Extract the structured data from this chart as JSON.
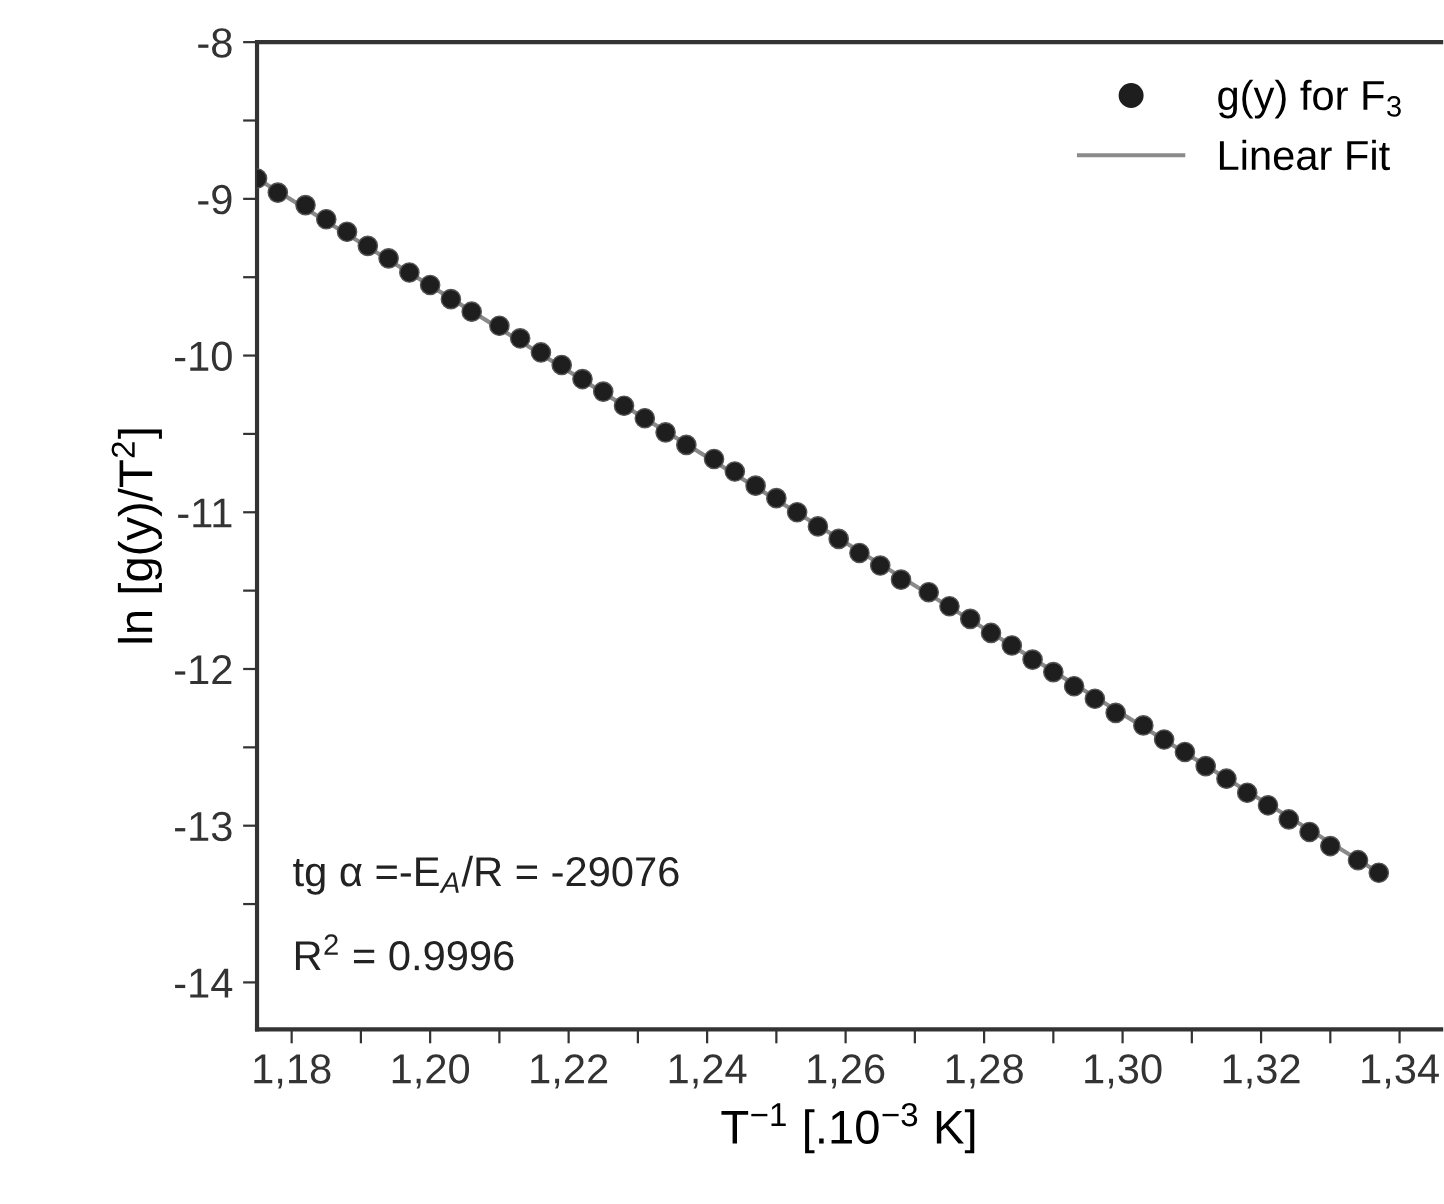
{
  "chart_data": {
    "type": "scatter",
    "xlabel": "T$^{−1}$ [.10$^{−3}$ K]",
    "ylabel": "ln [g(y)/T$^{2}$]",
    "annotations": [
      "tg α =-E$_{A}$/R = -29076",
      "R$^{2}$ = 0.9996"
    ],
    "xlim": [
      1.175,
      1.346
    ],
    "ylim": [
      -14.3,
      -8
    ],
    "xticks": [
      {
        "value": 1.18,
        "label": "1,18"
      },
      {
        "value": 1.19,
        "label": null
      },
      {
        "value": 1.2,
        "label": "1,20"
      },
      {
        "value": 1.21,
        "label": null
      },
      {
        "value": 1.22,
        "label": "1,22"
      },
      {
        "value": 1.23,
        "label": null
      },
      {
        "value": 1.24,
        "label": "1,24"
      },
      {
        "value": 1.25,
        "label": null
      },
      {
        "value": 1.26,
        "label": "1,26"
      },
      {
        "value": 1.27,
        "label": null
      },
      {
        "value": 1.28,
        "label": "1,28"
      },
      {
        "value": 1.29,
        "label": null
      },
      {
        "value": 1.3,
        "label": "1,30"
      },
      {
        "value": 1.31,
        "label": null
      },
      {
        "value": 1.32,
        "label": "1,32"
      },
      {
        "value": 1.33,
        "label": null
      },
      {
        "value": 1.34,
        "label": "1,34"
      }
    ],
    "yticks": [
      -14,
      {
        "value": -13.5,
        "label": null
      },
      -13,
      {
        "value": -12.5,
        "label": null
      },
      -12,
      {
        "value": -11.5,
        "label": null
      },
      -11,
      {
        "value": -10.5,
        "label": null
      },
      -10,
      {
        "value": -9.5,
        "label": null
      },
      -9,
      {
        "value": -8.5,
        "label": null
      },
      -8
    ],
    "grid": false,
    "legend": "top right",
    "marker": "circle",
    "series": [
      {
        "name": "Linear Fit",
        "type": "line",
        "color": "#8a8a8a",
        "line_style": "solid",
        "marker": "none",
        "x": [
          1.175,
          1.337
        ],
        "values": [
          -8.87,
          -13.3
        ]
      },
      {
        "name": "g(y) for F$_{3}$",
        "color": "#1e1e1e",
        "x": [
          1.175,
          1.178,
          1.182,
          1.185,
          1.188,
          1.191,
          1.194,
          1.197,
          1.2,
          1.203,
          1.206,
          1.21,
          1.213,
          1.216,
          1.219,
          1.222,
          1.225,
          1.228,
          1.231,
          1.234,
          1.237,
          1.241,
          1.244,
          1.247,
          1.25,
          1.253,
          1.256,
          1.259,
          1.262,
          1.265,
          1.268,
          1.272,
          1.275,
          1.278,
          1.281,
          1.284,
          1.287,
          1.29,
          1.293,
          1.296,
          1.299,
          1.303,
          1.306,
          1.309,
          1.312,
          1.315,
          1.318,
          1.321,
          1.324,
          1.327,
          1.33,
          1.334,
          1.337
        ],
        "values": [
          -8.87,
          -8.96,
          -9.04,
          -9.13,
          -9.21,
          -9.3,
          -9.38,
          -9.47,
          -9.55,
          -9.64,
          -9.72,
          -9.81,
          -9.89,
          -9.98,
          -10.06,
          -10.15,
          -10.23,
          -10.32,
          -10.4,
          -10.49,
          -10.57,
          -10.66,
          -10.74,
          -10.83,
          -10.91,
          -11.0,
          -11.09,
          -11.17,
          -11.26,
          -11.34,
          -11.43,
          -11.51,
          -11.6,
          -11.68,
          -11.77,
          -11.85,
          -11.94,
          -12.02,
          -12.11,
          -12.19,
          -12.28,
          -12.36,
          -12.45,
          -12.53,
          -12.62,
          -12.7,
          -12.79,
          -12.87,
          -12.96,
          -13.04,
          -13.13,
          -13.22,
          -13.3
        ]
      }
    ]
  }
}
